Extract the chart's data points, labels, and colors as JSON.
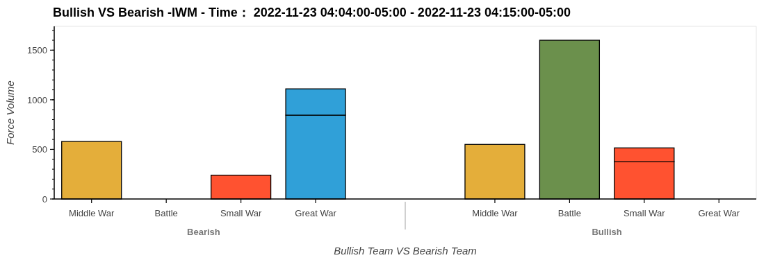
{
  "chart_data": {
    "type": "bar",
    "title": "Bullish VS Bearish -IWM - Time： 2022-11-23 04:04:00-05:00 - 2022-11-23 04:15:00-05:00",
    "xlabel": "Bullish Team VS Bearish Team",
    "ylabel": "Force Volume",
    "categories": [
      "Middle War",
      "Battle",
      "Small War",
      "Great War",
      "Middle War",
      "Battle",
      "Small War",
      "Great War"
    ],
    "annotations": [
      "Bearish",
      "Bullish"
    ],
    "stacked": true,
    "series": [
      {
        "colors": [
          "#e4ae3a",
          "#6b904c",
          "#ff5230",
          "#30a0d8",
          "#e4ae3a",
          "#6b904c",
          "#ff5230",
          "#30a0d8"
        ],
        "values": [
          580,
          0,
          240,
          845,
          550,
          1600,
          375,
          0
        ]
      },
      {
        "colors": [
          null,
          null,
          null,
          "#30a0d8",
          null,
          null,
          "#ff5230",
          null
        ],
        "values": [
          null,
          null,
          null,
          265,
          null,
          null,
          140,
          null
        ]
      }
    ],
    "ylim": [
      0,
      1740
    ],
    "yticks": [
      0,
      500,
      1000,
      1500
    ]
  }
}
